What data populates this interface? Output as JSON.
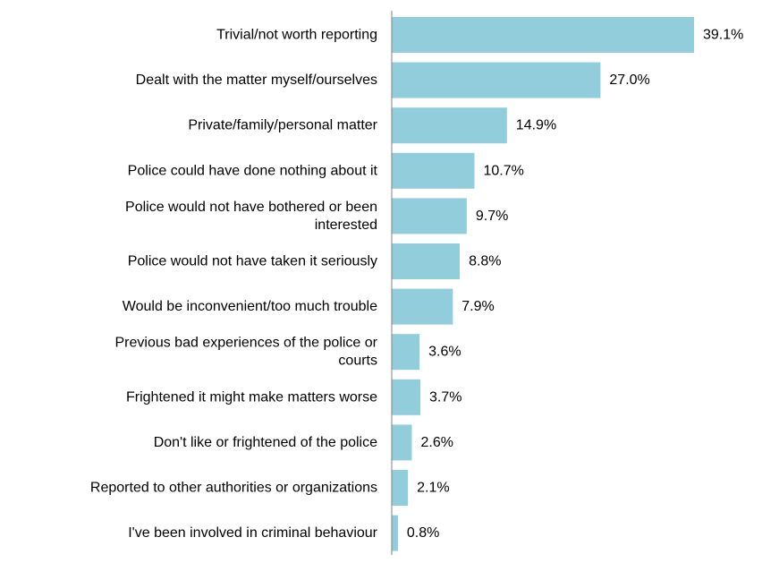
{
  "chart_data": {
    "type": "bar",
    "orientation": "horizontal",
    "categories": [
      [
        "Trivial/not worth reporting"
      ],
      [
        "Dealt with the matter myself/ourselves"
      ],
      [
        "Private/family/personal matter"
      ],
      [
        "Police could have done nothing about it"
      ],
      [
        "Police would not have bothered or been",
        "interested"
      ],
      [
        "Police would not have taken it seriously"
      ],
      [
        "Would be inconvenient/too much trouble"
      ],
      [
        "Previous bad experiences of the police or",
        "courts"
      ],
      [
        "Frightened it might make matters worse"
      ],
      [
        "Don't like or frightened of the police"
      ],
      [
        "Reported to other authorities or organizations"
      ],
      [
        "I've been involved in criminal behaviour"
      ]
    ],
    "values": [
      39.1,
      27.0,
      14.9,
      10.7,
      9.7,
      8.8,
      7.9,
      3.6,
      3.7,
      2.6,
      2.1,
      0.8
    ],
    "value_labels": [
      "39.1%",
      "27.0%",
      "14.9%",
      "10.7%",
      "9.7%",
      "8.8%",
      "7.9%",
      "3.6%",
      "3.7%",
      "2.6%",
      "2.1%",
      "0.8%"
    ],
    "xlim": [
      0,
      39.1
    ],
    "bar_color": "#92cddc",
    "axis_color": "#808080",
    "grid": false,
    "legend": "none"
  }
}
